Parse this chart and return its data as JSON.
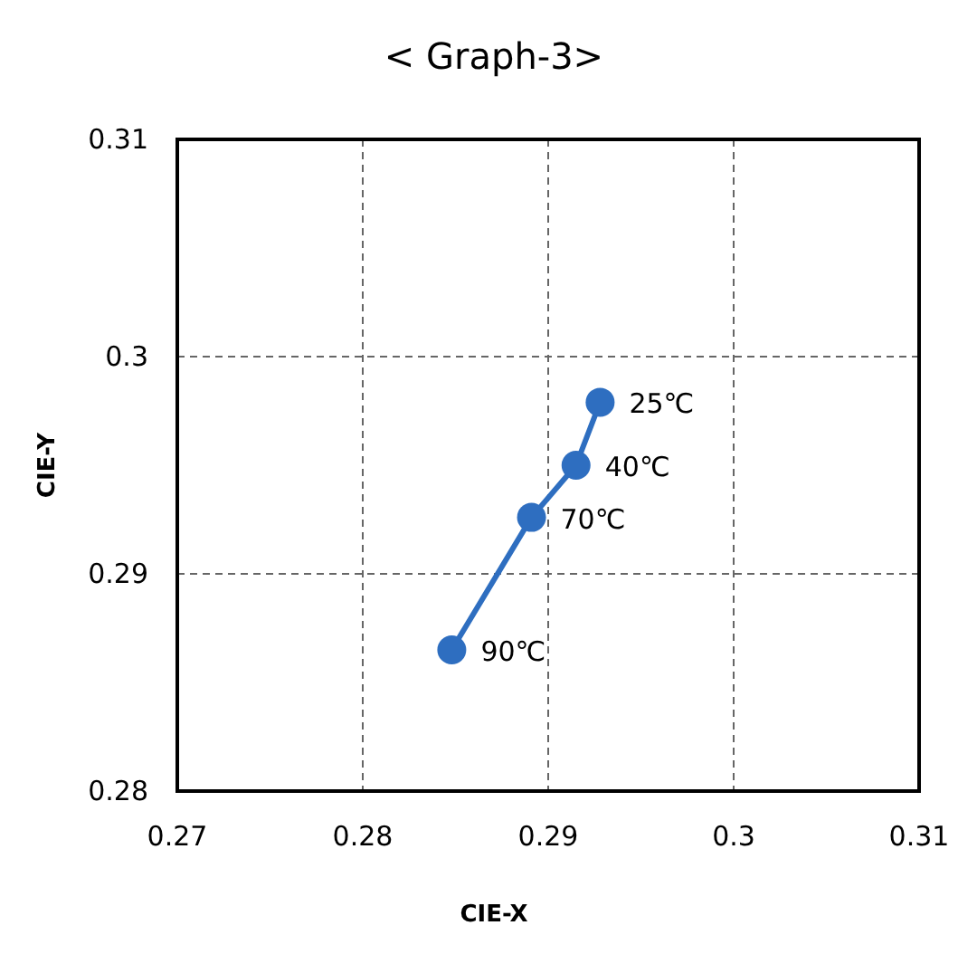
{
  "chart_data": {
    "type": "line",
    "title": "< Graph-3>",
    "xlabel": "CIE-X",
    "ylabel": "CIE-Y",
    "x": [
      0.2928,
      0.2915,
      0.2891,
      0.2848
    ],
    "series": [
      {
        "color": "#2e6ec0",
        "values": [
          0.2979,
          0.295,
          0.2926,
          0.2865
        ]
      }
    ],
    "xlim": [
      0.27,
      0.31
    ],
    "xticks": [
      0.27,
      0.28,
      0.29,
      0.3,
      0.31
    ],
    "ylim": [
      0.28,
      0.31
    ],
    "yticks": [
      0.28,
      0.29,
      0.3,
      0.31
    ],
    "grid": true,
    "marker": "circle",
    "line_style": "solid",
    "annotations": [
      {
        "text": "25℃",
        "x": 0.2928,
        "y": 0.2979
      },
      {
        "text": "40℃",
        "x": 0.2915,
        "y": 0.295
      },
      {
        "text": "70℃",
        "x": 0.2891,
        "y": 0.2926
      },
      {
        "text": "90℃",
        "x": 0.2848,
        "y": 0.2865
      }
    ]
  }
}
